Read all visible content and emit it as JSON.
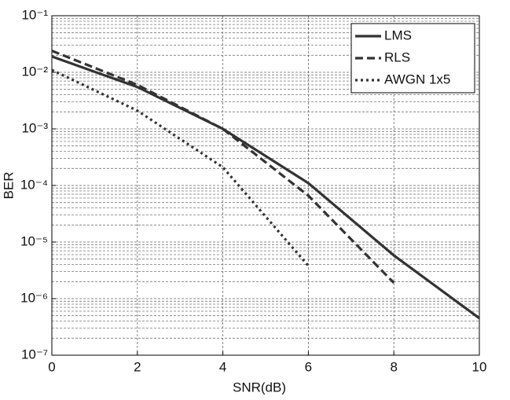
{
  "chart_data": {
    "type": "line",
    "x_label": "SNR(dB)",
    "y_label": "BER",
    "x": [
      0,
      2,
      4,
      6,
      8,
      10
    ],
    "series": [
      {
        "name": "LMS",
        "color": "#333333",
        "style": "solid",
        "values": [
          0.019,
          0.0055,
          0.001,
          0.00011,
          5.8e-06,
          4.5e-07
        ]
      },
      {
        "name": "RLS",
        "color": "#333333",
        "style": "dashed",
        "values": [
          0.024,
          0.006,
          0.001,
          6.6e-05,
          1.9e-06,
          null
        ]
      },
      {
        "name": "AWGN 1x5",
        "color": "#333333",
        "style": "dotted",
        "values": [
          0.011,
          0.0021,
          0.00021,
          3.8e-06,
          null,
          null
        ]
      }
    ],
    "xlim": [
      0,
      10
    ],
    "xticks": [
      0,
      2,
      4,
      6,
      8,
      10
    ],
    "ylim": [
      1e-07,
      0.1
    ],
    "yticks": [
      {
        "value": 0.1,
        "label": "10⁻¹"
      },
      {
        "value": 0.01,
        "label": "10⁻²"
      },
      {
        "value": 0.001,
        "label": "10⁻³"
      },
      {
        "value": 0.0001,
        "label": "10⁻⁴"
      },
      {
        "value": 1e-05,
        "label": "10⁻⁵"
      },
      {
        "value": 1e-06,
        "label": "10⁻⁶"
      },
      {
        "value": 1e-07,
        "label": "10⁻⁷"
      }
    ],
    "y_log": true,
    "grid": true,
    "minor_grid": true,
    "legend": "upper right"
  }
}
